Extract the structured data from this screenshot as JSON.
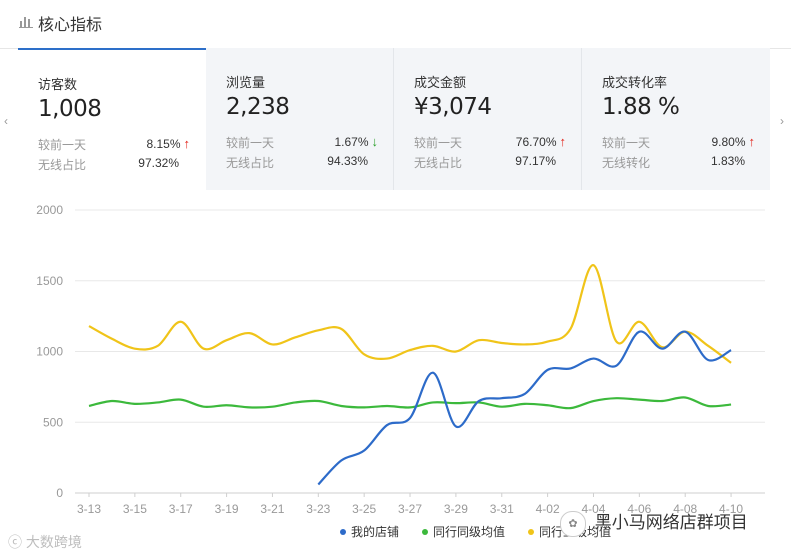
{
  "header": {
    "title": "核心指标",
    "icon": "bar-chart-icon"
  },
  "metrics": [
    {
      "name": "访客数",
      "value": "1,008",
      "compare_label": "较前一天",
      "compare_value": "8.15%",
      "compare_dir": "up",
      "ratio_label": "无线占比",
      "ratio_value": "97.32%",
      "active": true
    },
    {
      "name": "浏览量",
      "value": "2,238",
      "compare_label": "较前一天",
      "compare_value": "1.67%",
      "compare_dir": "down",
      "ratio_label": "无线占比",
      "ratio_value": "94.33%",
      "active": false
    },
    {
      "name": "成交金额",
      "value": "¥3,074",
      "compare_label": "较前一天",
      "compare_value": "76.70%",
      "compare_dir": "up",
      "ratio_label": "无线占比",
      "ratio_value": "97.17%",
      "active": false
    },
    {
      "name": "成交转化率",
      "value": "1.88 %",
      "compare_label": "较前一天",
      "compare_value": "9.80%",
      "compare_dir": "up",
      "ratio_label": "无线转化",
      "ratio_value": "1.83%",
      "active": false
    }
  ],
  "nav": {
    "prev": "‹",
    "next": "›"
  },
  "colors": {
    "mine": "#2d6bc9",
    "peer_avg": "#3cb93c",
    "peer_top": "#f0c419",
    "accent": "#2d6fc9",
    "up": "#e2231a",
    "down": "#2ca02c"
  },
  "chart_data": {
    "type": "line",
    "ylim": [
      0,
      2000
    ],
    "yticks": [
      "0",
      "500",
      "1000",
      "1500",
      "2000"
    ],
    "x": [
      "3-13",
      "3-14",
      "3-15",
      "3-16",
      "3-17",
      "3-18",
      "3-19",
      "3-20",
      "3-21",
      "3-22",
      "3-23",
      "3-24",
      "3-25",
      "3-26",
      "3-27",
      "3-28",
      "3-29",
      "3-30",
      "3-31",
      "4-01",
      "4-02",
      "4-03",
      "4-04",
      "4-05",
      "4-06",
      "4-07",
      "4-08",
      "4-09",
      "4-10",
      "4-11"
    ],
    "xtick_labels": [
      "3-13",
      "3-15",
      "3-17",
      "3-19",
      "3-21",
      "3-23",
      "3-25",
      "3-27",
      "3-29",
      "3-31",
      "4-02",
      "4-04",
      "4-06",
      "4-08",
      "4-10"
    ],
    "series": [
      {
        "name": "我的店铺",
        "color": "#2d6bc9",
        "values": [
          null,
          null,
          null,
          null,
          null,
          null,
          null,
          null,
          null,
          null,
          60,
          230,
          300,
          480,
          530,
          850,
          470,
          650,
          670,
          700,
          870,
          880,
          950,
          900,
          1140,
          1020,
          1140,
          940,
          1010,
          null
        ]
      },
      {
        "name": "同行同级均值",
        "color": "#3cb93c",
        "values": [
          615,
          650,
          630,
          640,
          660,
          610,
          620,
          605,
          610,
          640,
          650,
          615,
          605,
          615,
          605,
          640,
          635,
          640,
          610,
          630,
          620,
          600,
          650,
          670,
          660,
          650,
          675,
          615,
          625,
          null
        ]
      },
      {
        "name": "同行上级均值",
        "color": "#f0c419",
        "values": [
          1180,
          1090,
          1020,
          1040,
          1210,
          1020,
          1080,
          1130,
          1050,
          1100,
          1150,
          1160,
          980,
          950,
          1010,
          1040,
          1000,
          1080,
          1060,
          1050,
          1070,
          1160,
          1610,
          1070,
          1210,
          1030,
          1140,
          1040,
          920,
          null
        ]
      }
    ],
    "legend_position": "bottom-center"
  },
  "watermarks": {
    "left": "大数跨境",
    "right": "黑小马网络店群项目"
  }
}
